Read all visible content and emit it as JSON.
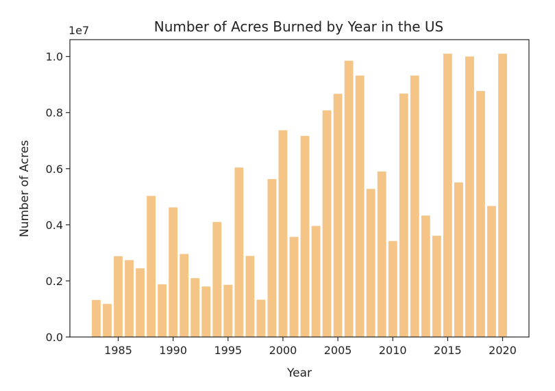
{
  "chart_data": {
    "type": "bar",
    "title": "Number of Acres Burned by Year in the US",
    "xlabel": "Year",
    "ylabel": "Number of Acres",
    "y_scale_label": "1e7",
    "y_multiplier": 10000000,
    "bar_color": "#F5C487",
    "grid": false,
    "xlim": [
      1980.6,
      2022.4
    ],
    "ylim": [
      0,
      1.06
    ],
    "x_ticks": [
      1985,
      1990,
      1995,
      2000,
      2005,
      2010,
      2015,
      2020
    ],
    "x_tick_labels": [
      "1985",
      "1990",
      "1995",
      "2000",
      "2005",
      "2010",
      "2015",
      "2020"
    ],
    "y_ticks": [
      0.0,
      0.2,
      0.4,
      0.6,
      0.8,
      1.0
    ],
    "y_tick_labels": [
      "0.0",
      "0.2",
      "0.4",
      "0.6",
      "0.8",
      "1.0"
    ],
    "x": [
      1983,
      1984,
      1985,
      1986,
      1987,
      1988,
      1989,
      1990,
      1991,
      1992,
      1993,
      1994,
      1995,
      1996,
      1997,
      1998,
      1999,
      2000,
      2001,
      2002,
      2003,
      2004,
      2005,
      2006,
      2007,
      2008,
      2009,
      2010,
      2011,
      2012,
      2013,
      2014,
      2015,
      2016,
      2017,
      2018,
      2019,
      2020
    ],
    "values": [
      0.132,
      0.118,
      0.288,
      0.274,
      0.245,
      0.503,
      0.188,
      0.462,
      0.296,
      0.21,
      0.18,
      0.41,
      0.186,
      0.604,
      0.289,
      0.133,
      0.563,
      0.737,
      0.357,
      0.717,
      0.396,
      0.808,
      0.867,
      0.985,
      0.932,
      0.528,
      0.59,
      0.342,
      0.868,
      0.932,
      0.433,
      0.361,
      1.01,
      0.551,
      1.0,
      0.877,
      0.467,
      1.01
    ]
  }
}
